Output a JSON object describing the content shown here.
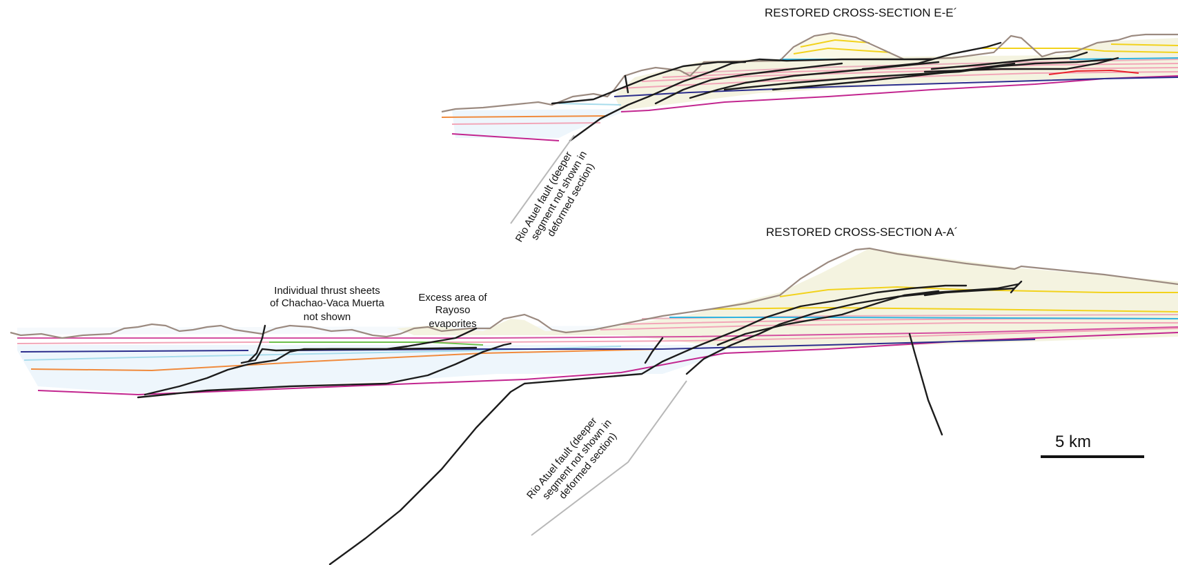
{
  "sections": {
    "ee_title": "RESTORED CROSS-SECTION E-E´",
    "aa_title": "RESTORED CROSS-SECTION A-A´"
  },
  "annotations": {
    "fault_ee": [
      "Rio Atuel fault (deeper",
      "segment not shown in",
      "deformed section)"
    ],
    "fault_aa": [
      "Rio Atuel fault (deeper",
      "segment not shown in",
      "deformed section)"
    ],
    "thrust_sheets": [
      "Individual thrust sheets",
      "of Chachao-Vaca Muerta",
      "not shown"
    ],
    "excess_area": [
      "Excess area of",
      "Rayoso",
      "evaporites"
    ]
  },
  "scale_bar": {
    "label": "5 km"
  },
  "colors": {
    "topography": "#9b8a80",
    "fault": "#1c1c1c",
    "fault_deep": "#b8b8b8",
    "magenta": "#c2258f",
    "navy": "#2b2d8c",
    "orange": "#f08a3c",
    "pink": "#f2a6b8",
    "light_blue": "#a8dcec",
    "cyan": "#2fb4e0",
    "yellow": "#f2d21b",
    "green": "#6cbf4a",
    "red": "#e8202a",
    "fill_cream": "#f4f3e0",
    "fill_blue": "#eef6fc"
  }
}
